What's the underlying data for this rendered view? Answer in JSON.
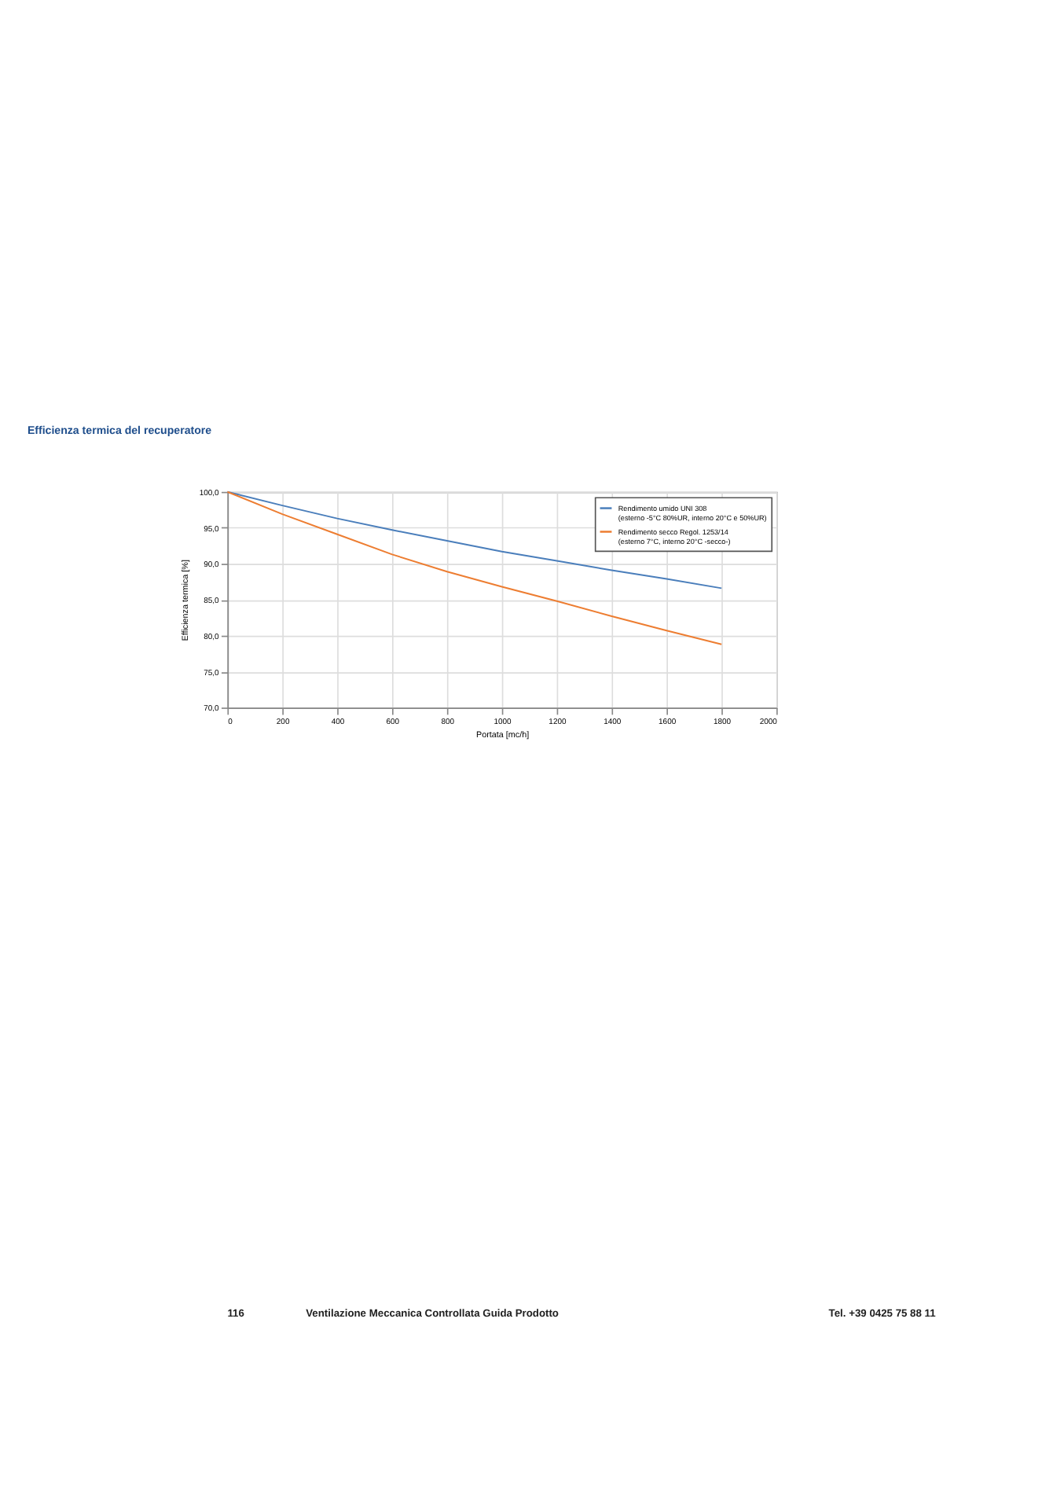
{
  "chart_data": {
    "type": "line",
    "title": "Efficienza termica del recuperatore",
    "xlabel": "Portata [mc/h]",
    "ylabel": "Efficienza termica [%]",
    "x": [
      0,
      200,
      400,
      600,
      800,
      1000,
      1200,
      1400,
      1600,
      1800
    ],
    "series": [
      {
        "name": "Rendimento umido UNI 308\n(esterno -5°C 80%UR, interno 20°C e 50%UR)",
        "color": "#4a7ebb",
        "values": [
          100,
          98.1,
          96.3,
          94.7,
          93.2,
          91.7,
          90.4,
          89.1,
          87.9,
          86.6
        ]
      },
      {
        "name": "Rendimento secco Regol. 1253/14\n(esterno 7°C, interno 20°C -secco-)",
        "color": "#ed7d31",
        "values": [
          100,
          96.9,
          94.1,
          91.3,
          88.9,
          86.8,
          84.8,
          82.7,
          80.7,
          78.8
        ]
      }
    ],
    "xlim": [
      0,
      2000
    ],
    "xticks": [
      0,
      200,
      400,
      600,
      800,
      1000,
      1200,
      1400,
      1600,
      1800,
      2000
    ],
    "ylim": [
      70,
      100
    ],
    "yticks": [
      {
        "value": 70,
        "label": "70,0"
      },
      {
        "value": 75,
        "label": "75,0"
      },
      {
        "value": 80,
        "label": "80,0"
      },
      {
        "value": 85,
        "label": "85,0"
      },
      {
        "value": 90,
        "label": "90,0"
      },
      {
        "value": 95,
        "label": "95,0"
      },
      {
        "value": 100,
        "label": "100,0"
      }
    ],
    "grid": true,
    "legend": "top right",
    "marker": "none",
    "line_style": "solid",
    "annotations": [
      "116",
      "Ventilazione Meccanica Controllata Guida Prodotto",
      "Tel. +39 0425 75 88 11"
    ]
  }
}
